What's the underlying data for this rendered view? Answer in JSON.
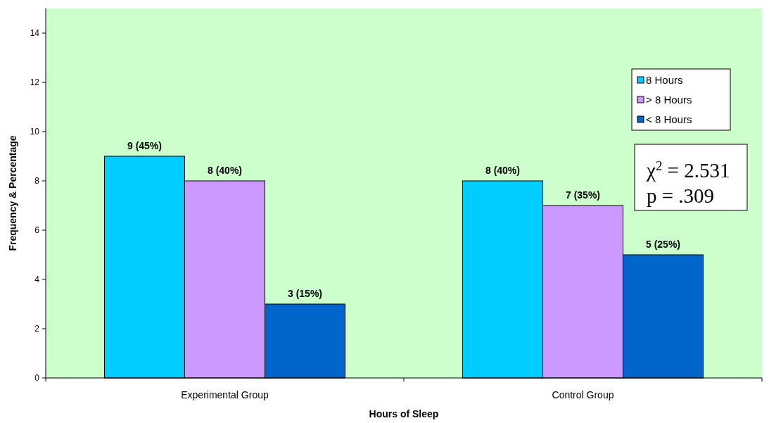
{
  "chart_data": {
    "type": "bar",
    "xlabel": "Hours of Sleep",
    "ylabel": "Frequency & Percentage",
    "categories": [
      "Experimental Group",
      "Control Group"
    ],
    "series": [
      {
        "name": "8 Hours",
        "color": "#00ccff",
        "values": [
          9,
          8
        ],
        "value_labels": [
          "9 (45%)",
          "8 (40%)"
        ]
      },
      {
        "name": "> 8 Hours",
        "color": "#cc99ff",
        "values": [
          8,
          7
        ],
        "value_labels": [
          "8 (40%)",
          "7 (35%)"
        ]
      },
      {
        "name": "< 8 Hours",
        "color": "#0066cc",
        "values": [
          3,
          5
        ],
        "value_labels": [
          "3 (15%)",
          "5 (25%)"
        ]
      }
    ],
    "ylim": [
      0,
      15
    ],
    "yticks": [
      0,
      2,
      4,
      6,
      8,
      10,
      12,
      14
    ],
    "grid": false,
    "legend": "top right",
    "annotations": [
      "χ$^{2}$  = 2.531",
      "p   = .309"
    ]
  }
}
